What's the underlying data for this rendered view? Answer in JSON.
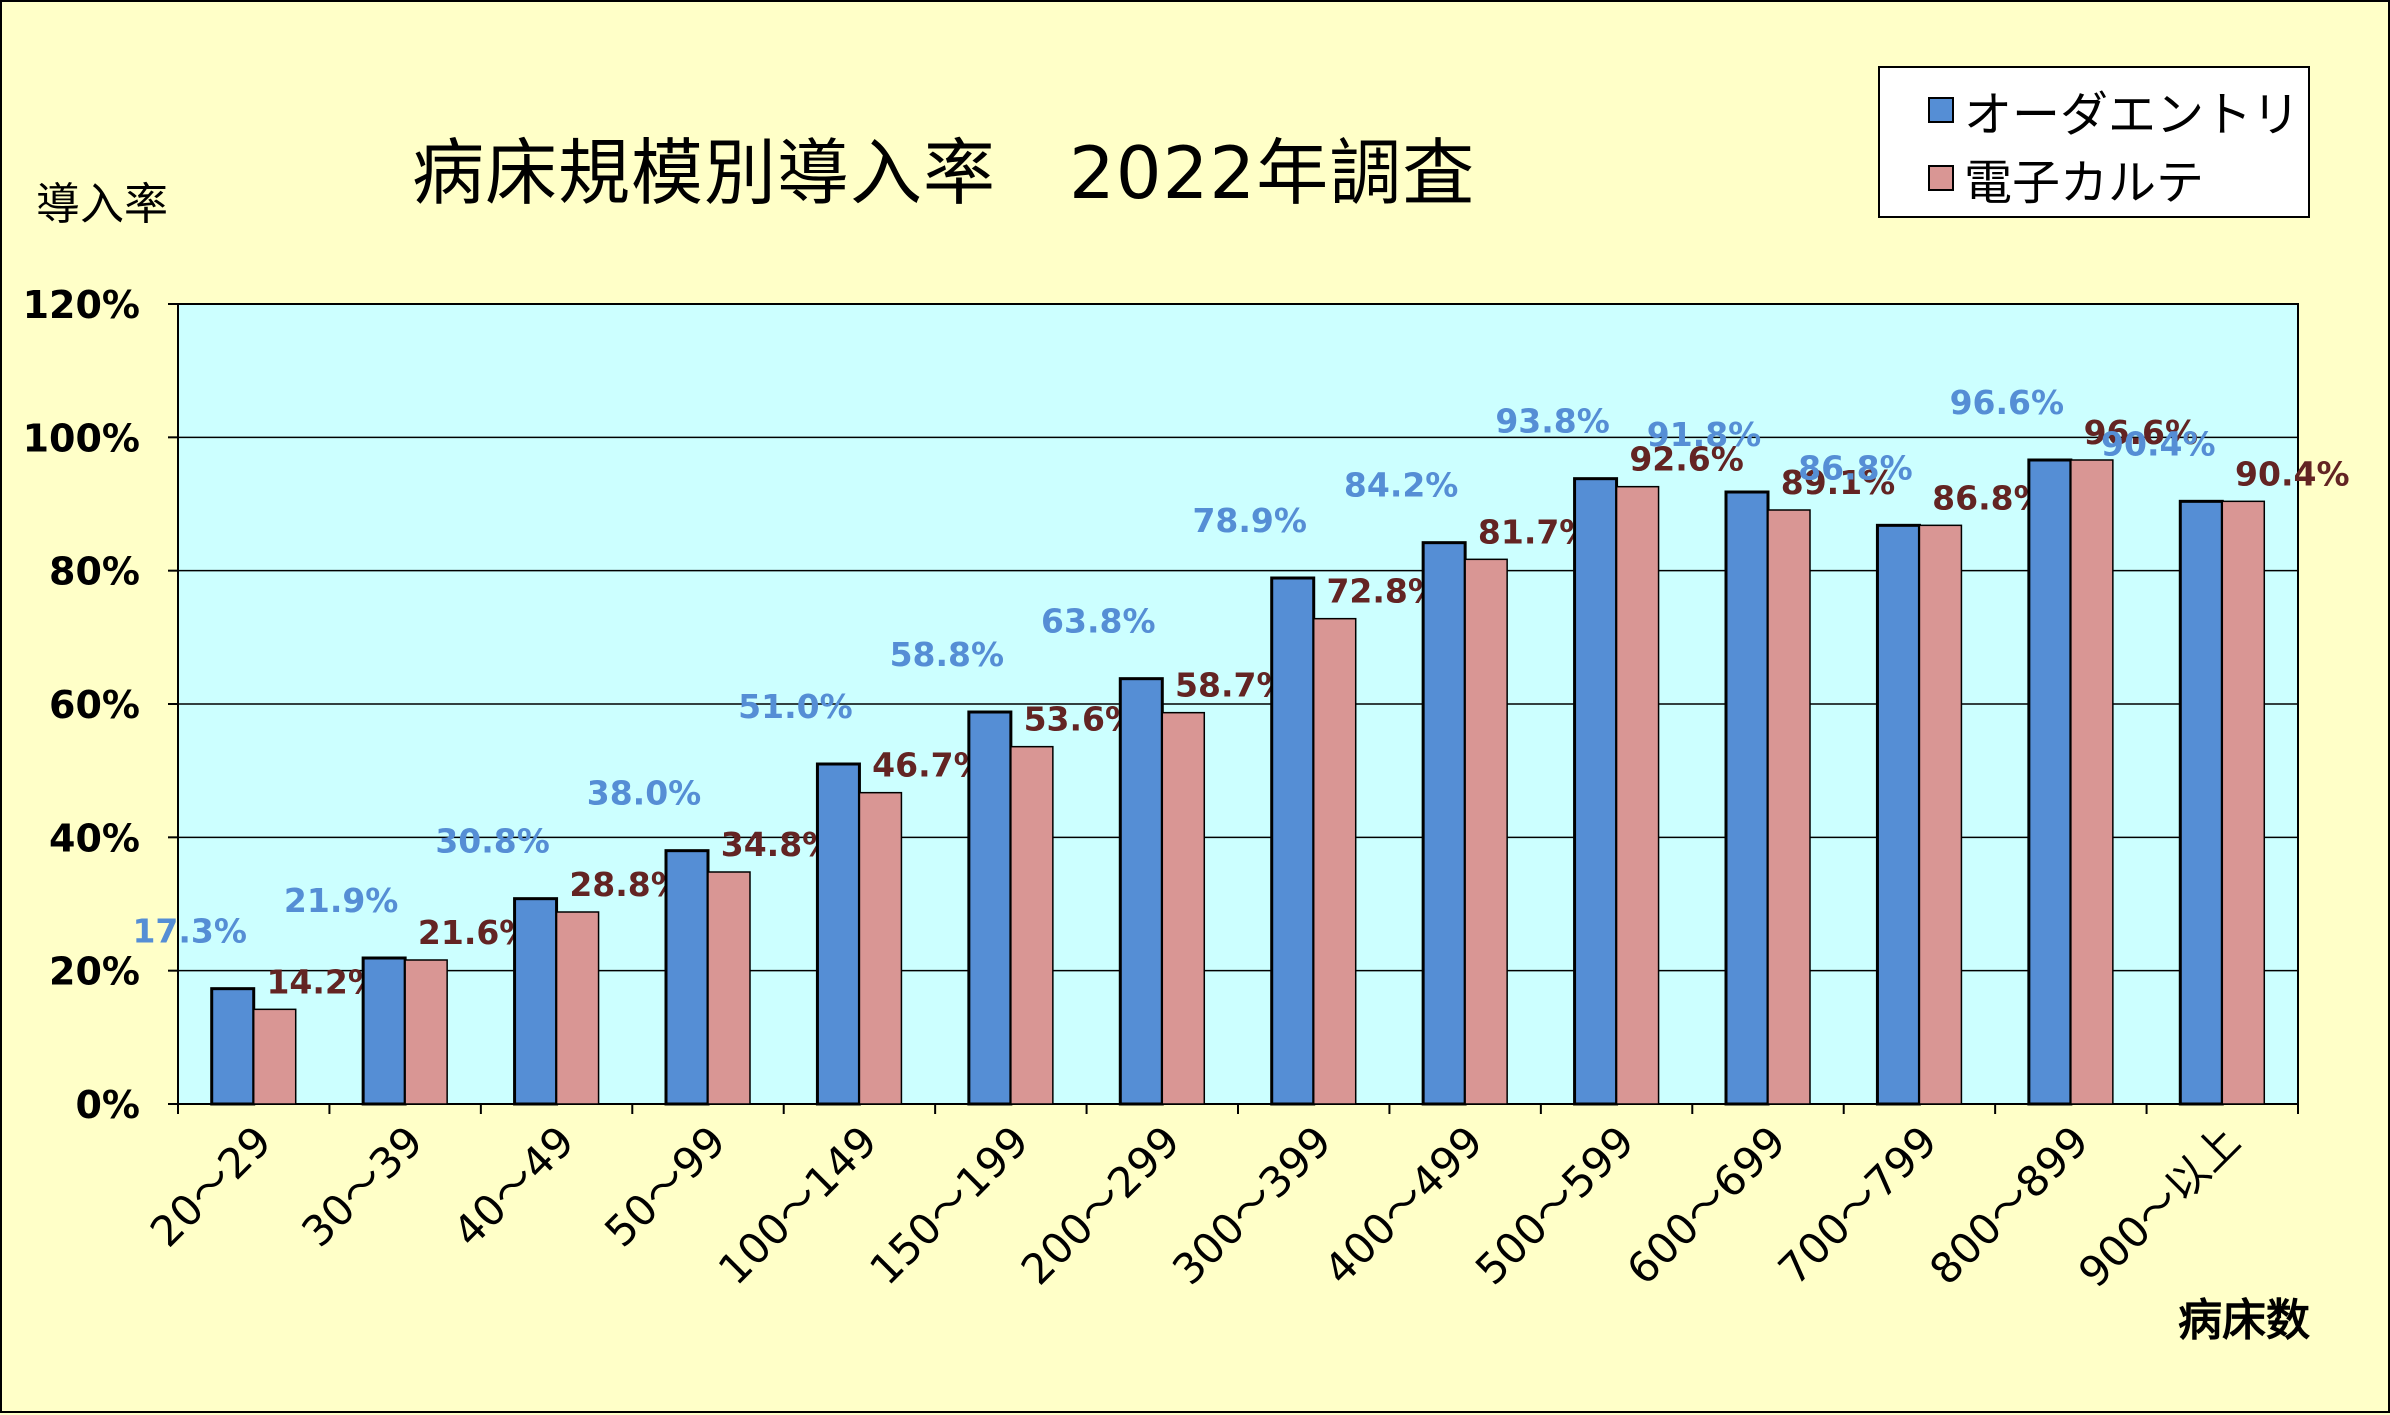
{
  "chart_data": {
    "type": "bar",
    "title": "病床規模別導入率　2022年調査",
    "ylabel": "導入率",
    "xlabel": "病床数",
    "ylim": [
      0,
      120
    ],
    "yticks": [
      "0%",
      "20%",
      "40%",
      "60%",
      "80%",
      "100%",
      "120%"
    ],
    "grid": true,
    "legend_position": "top-right",
    "categories": [
      "20～29",
      "30～39",
      "40～49",
      "50～99",
      "100～149",
      "150～199",
      "200～299",
      "300～399",
      "400～499",
      "500～599",
      "600～699",
      "700～799",
      "800～899",
      "900～以上"
    ],
    "series": [
      {
        "name": "オーダエントリ",
        "color": "#558ed5",
        "label_color": "#558ed5",
        "values": [
          17.3,
          21.9,
          30.8,
          38.0,
          51.0,
          58.8,
          63.8,
          78.9,
          84.2,
          93.8,
          91.8,
          86.8,
          96.6,
          90.4
        ],
        "labels": [
          "17.3%",
          "21.9%",
          "30.8%",
          "38.0%",
          "51.0%",
          "58.8%",
          "63.8%",
          "78.9%",
          "84.2%",
          "93.8%",
          "91.8%",
          "86.8%",
          "96.6%",
          "90.4%"
        ]
      },
      {
        "name": "電子カルテ",
        "color": "#d99694",
        "label_color": "#632423",
        "values": [
          14.2,
          21.6,
          28.8,
          34.8,
          46.7,
          53.6,
          58.7,
          72.8,
          81.7,
          92.6,
          89.1,
          86.8,
          96.6,
          90.4
        ],
        "labels": [
          "14.2%",
          "21.6%",
          "28.8%",
          "34.8%",
          "46.7%",
          "53.6%",
          "58.7%",
          "72.8%",
          "81.7%",
          "92.6%",
          "89.1%",
          "86.8%",
          "96.6%",
          "90.4%"
        ]
      }
    ],
    "plot_background": "#ccffff",
    "page_background": "#ffffc8"
  }
}
